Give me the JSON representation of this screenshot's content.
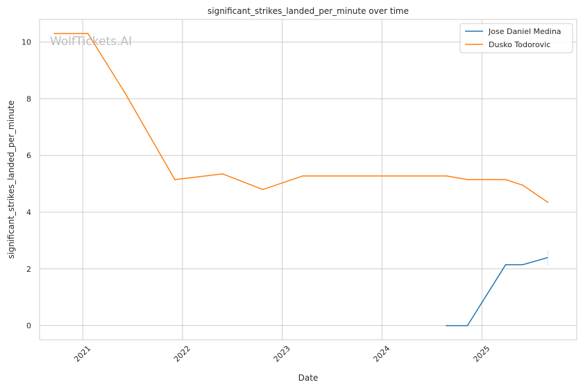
{
  "chart_data": {
    "type": "line",
    "title": "significant_strikes_landed_per_minute over time",
    "xlabel": "Date",
    "ylabel": "significant_strikes_landed_per_minute",
    "x_type": "date",
    "xlim": [
      "2020-07-27",
      "2025-12-14"
    ],
    "ylim": [
      -0.5,
      10.8
    ],
    "x_ticks": [
      "2021-01-01",
      "2022-01-01",
      "2023-01-01",
      "2024-01-01",
      "2025-01-01"
    ],
    "x_tick_labels": [
      "2021",
      "2022",
      "2023",
      "2024",
      "2025"
    ],
    "y_ticks": [
      0,
      2,
      4,
      6,
      8,
      10
    ],
    "y_tick_labels": [
      "0",
      "2",
      "4",
      "6",
      "8",
      "10"
    ],
    "grid": true,
    "legend_position": "top-right",
    "watermark": "WolfTickets.AI",
    "series": [
      {
        "name": "Jose Daniel Medina",
        "color": "#1f77b4",
        "points": [
          {
            "x": "2024-08-24",
            "y": 0.0
          },
          {
            "x": "2024-11-09",
            "y": 0.0
          },
          {
            "x": "2025-03-29",
            "y": 2.15
          },
          {
            "x": "2025-05-31",
            "y": 2.15
          },
          {
            "x": "2025-08-30",
            "y": 2.4
          }
        ],
        "error_bar": {
          "x": "2025-08-30",
          "low": 2.12,
          "high": 2.66
        }
      },
      {
        "name": "Dusko Todorovic",
        "color": "#ff7f0e",
        "points": [
          {
            "x": "2020-09-19",
            "y": 10.3
          },
          {
            "x": "2021-01-20",
            "y": 10.3
          },
          {
            "x": "2021-06-05",
            "y": 8.2
          },
          {
            "x": "2021-12-04",
            "y": 5.15
          },
          {
            "x": "2022-05-28",
            "y": 5.35
          },
          {
            "x": "2022-10-22",
            "y": 4.8
          },
          {
            "x": "2023-03-18",
            "y": 5.28
          },
          {
            "x": "2024-08-24",
            "y": 5.28
          },
          {
            "x": "2024-11-09",
            "y": 5.15
          },
          {
            "x": "2025-03-29",
            "y": 5.15
          },
          {
            "x": "2025-05-31",
            "y": 4.95
          },
          {
            "x": "2025-08-30",
            "y": 4.35
          }
        ]
      }
    ]
  }
}
